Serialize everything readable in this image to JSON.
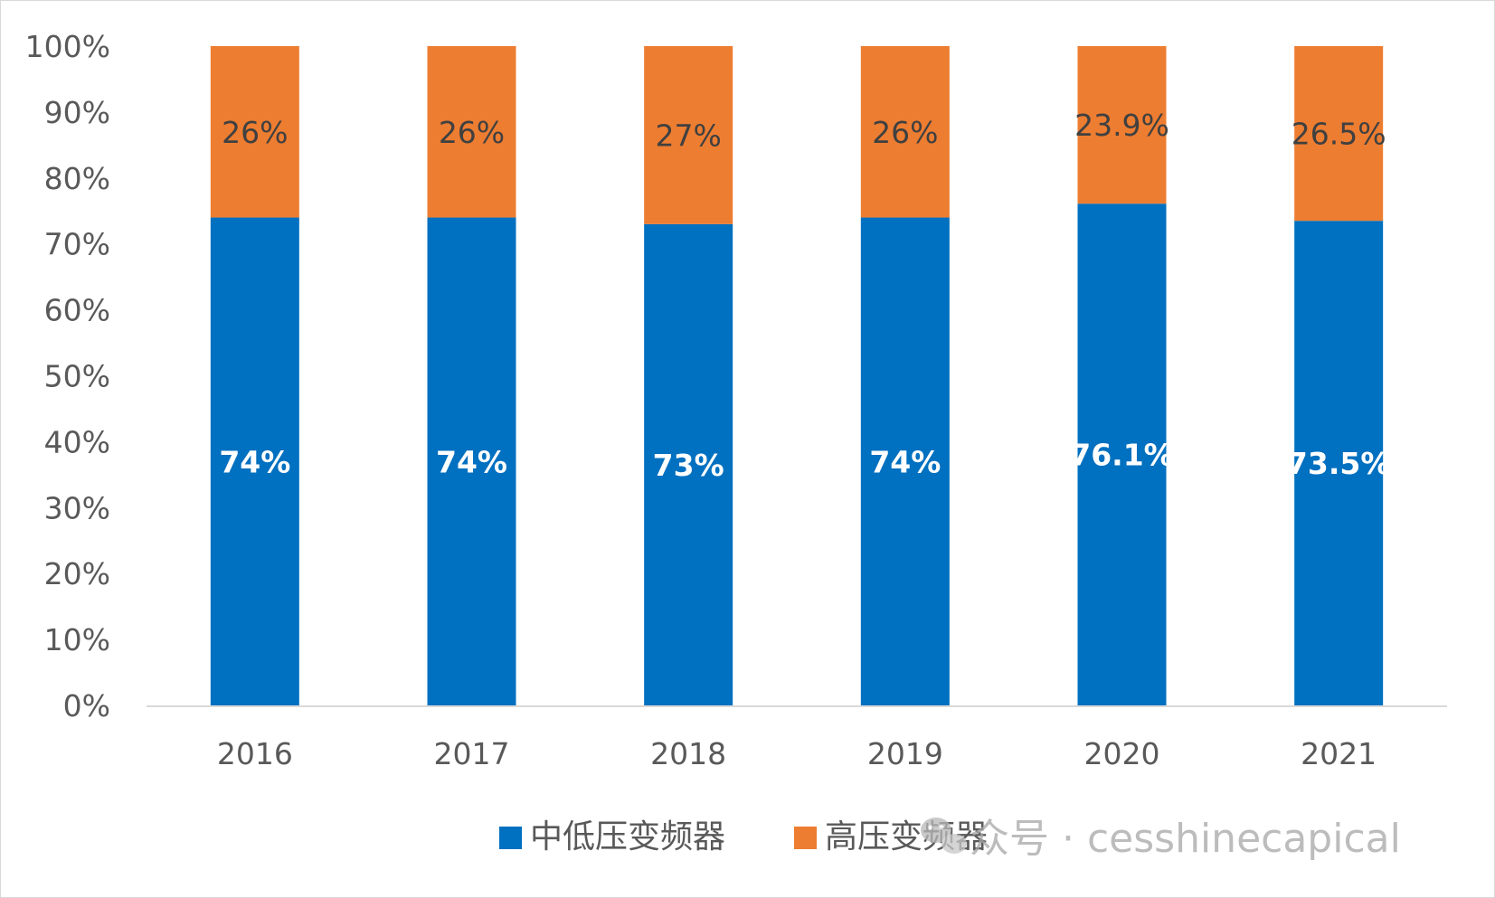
{
  "colors": {
    "low_voltage": "#0070C0",
    "high_voltage": "#ED7D31",
    "axis": "#D9D9D9",
    "tick_text": "#595959"
  },
  "watermark": {
    "text": "众号 · cesshinecapical",
    "icon": "wechat-icon"
  },
  "chart_data": {
    "type": "bar",
    "stacked": true,
    "percent_stacked": true,
    "categories": [
      "2016",
      "2017",
      "2018",
      "2019",
      "2020",
      "2021"
    ],
    "series": [
      {
        "name": "中低压变频器",
        "values": [
          74,
          74,
          73,
          74,
          76.1,
          73.5
        ],
        "labels": [
          "74%",
          "74%",
          "73%",
          "74%",
          "76.1%",
          "73.5%"
        ]
      },
      {
        "name": "高压变频器",
        "values": [
          26,
          26,
          27,
          26,
          23.9,
          26.5
        ],
        "labels": [
          "26%",
          "26%",
          "27%",
          "26%",
          "23.9%",
          "26.5%"
        ]
      }
    ],
    "yticks": [
      "0%",
      "10%",
      "20%",
      "30%",
      "40%",
      "50%",
      "60%",
      "70%",
      "80%",
      "90%",
      "100%"
    ],
    "ylim": [
      0,
      100
    ],
    "grid": false,
    "legend": "bottom-center"
  }
}
